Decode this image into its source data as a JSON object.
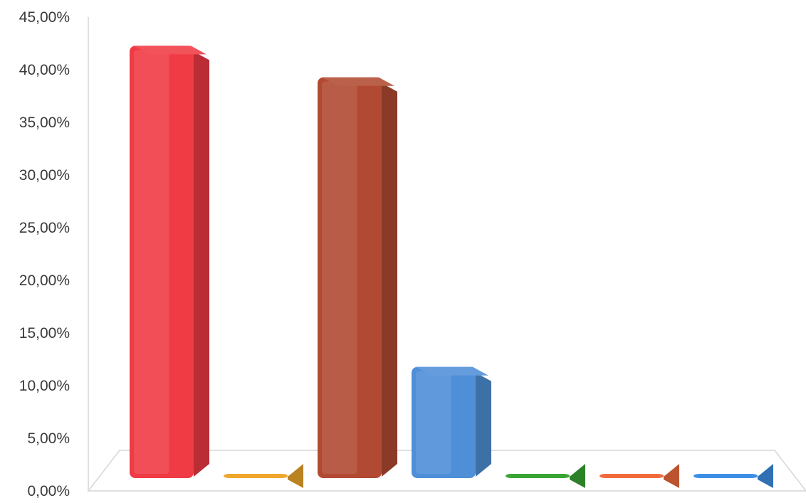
{
  "chart_data": {
    "type": "bar",
    "title": "",
    "xlabel": "",
    "ylabel": "",
    "categories": [
      "",
      "",
      "",
      "",
      "",
      "",
      ""
    ],
    "values": [
      42.0,
      1.0,
      39.0,
      11.5,
      0.8,
      1.0,
      1.2
    ],
    "colors": [
      "#f03a44",
      "#f0a72c",
      "#b24a33",
      "#4f8fd8",
      "#3aa534",
      "#f06b3c",
      "#3d8fe6"
    ],
    "ylim": [
      0,
      45
    ],
    "yticks": [
      "0,00%",
      "5,00%",
      "10,00%",
      "15,00%",
      "20,00%",
      "25,00%",
      "30,00%",
      "35,00%",
      "40,00%",
      "45,00%"
    ],
    "style": "3d-bar",
    "grid": false
  }
}
